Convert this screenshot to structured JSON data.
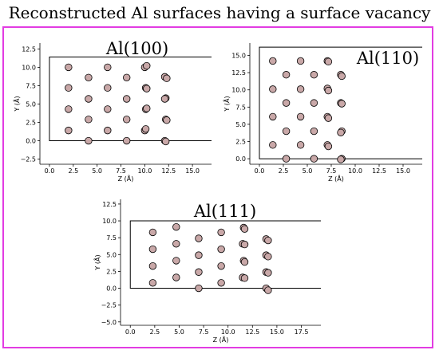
{
  "title": "Reconstructed Al surfaces having a surface vacancy",
  "colors": {
    "frame": "#e23ce2",
    "marker_fill": "#c9a8a8",
    "marker_edge": "#000000",
    "line": "#000000"
  },
  "chart_data": [
    {
      "type": "scatter",
      "title": "Al(100)",
      "xlabel": "Z (Å)",
      "ylabel": "Y (Å)",
      "xlim": [
        -1.0,
        17.0
      ],
      "ylim": [
        -3.2,
        13.3
      ],
      "xticks": [
        0.0,
        2.5,
        5.0,
        7.5,
        10.0,
        12.5,
        15.0
      ],
      "xtick_labels": [
        "0.0",
        "2.5",
        "5.0",
        "7.5",
        "10.0",
        "12.5",
        "15.0"
      ],
      "yticks": [
        -2.5,
        0.0,
        2.5,
        5.0,
        7.5,
        10.0,
        12.5
      ],
      "ytick_labels": [
        "−2.5",
        "0.0",
        "2.5",
        "5.0",
        "7.5",
        "10.0",
        "12.5"
      ],
      "cell_box": {
        "x": [
          0,
          17.0
        ],
        "y": [
          0,
          11.4
        ]
      },
      "points": [
        [
          2.0,
          10.0
        ],
        [
          2.0,
          7.2
        ],
        [
          2.0,
          4.3
        ],
        [
          2.0,
          1.4
        ],
        [
          4.1,
          8.6
        ],
        [
          4.1,
          5.7
        ],
        [
          4.1,
          2.9
        ],
        [
          4.1,
          0.0
        ],
        [
          6.1,
          10.0
        ],
        [
          6.1,
          7.2
        ],
        [
          6.1,
          4.3
        ],
        [
          6.1,
          1.4
        ],
        [
          8.1,
          8.6
        ],
        [
          8.1,
          5.7
        ],
        [
          8.1,
          2.9
        ],
        [
          8.1,
          0.0
        ],
        [
          10.0,
          10.0
        ],
        [
          10.2,
          10.2
        ],
        [
          10.1,
          7.2
        ],
        [
          10.2,
          7.1
        ],
        [
          10.1,
          4.3
        ],
        [
          10.2,
          4.4
        ],
        [
          10.0,
          1.4
        ],
        [
          10.1,
          1.6
        ],
        [
          12.1,
          8.7
        ],
        [
          12.3,
          8.5
        ],
        [
          12.2,
          5.8
        ],
        [
          12.1,
          5.7
        ],
        [
          12.2,
          2.9
        ],
        [
          12.3,
          2.8
        ],
        [
          12.1,
          0.0
        ],
        [
          12.2,
          -0.1
        ]
      ]
    },
    {
      "type": "scatter",
      "title": "Al(110)",
      "xlabel": "Z (Å)",
      "ylabel": "Y (Å)",
      "xlim": [
        -1.0,
        17.0
      ],
      "ylim": [
        -0.8,
        16.8
      ],
      "xticks": [
        0.0,
        2.5,
        5.0,
        7.5,
        10.0,
        12.5,
        15.0
      ],
      "xtick_labels": [
        "0.0",
        "2.5",
        "5.0",
        "7.5",
        "10.0",
        "12.5",
        "15.0"
      ],
      "yticks": [
        0.0,
        2.5,
        5.0,
        7.5,
        10.0,
        12.5,
        15.0
      ],
      "ytick_labels": [
        "0.0",
        "2.5",
        "5.0",
        "7.5",
        "10.0",
        "12.5",
        "15.0"
      ],
      "cell_box": {
        "x": [
          0,
          17.0
        ],
        "y": [
          0,
          16.2
        ]
      },
      "points": [
        [
          1.4,
          14.2
        ],
        [
          1.4,
          10.1
        ],
        [
          1.4,
          6.1
        ],
        [
          1.4,
          2.0
        ],
        [
          2.8,
          12.2
        ],
        [
          2.8,
          8.1
        ],
        [
          2.8,
          4.0
        ],
        [
          2.8,
          0.0
        ],
        [
          4.3,
          14.2
        ],
        [
          4.3,
          10.1
        ],
        [
          4.3,
          6.1
        ],
        [
          4.3,
          2.0
        ],
        [
          5.7,
          12.2
        ],
        [
          5.7,
          8.1
        ],
        [
          5.7,
          4.0
        ],
        [
          5.7,
          0.0
        ],
        [
          7.1,
          14.2
        ],
        [
          7.2,
          14.1
        ],
        [
          7.1,
          10.2
        ],
        [
          7.2,
          9.9
        ],
        [
          7.1,
          6.1
        ],
        [
          7.2,
          5.9
        ],
        [
          7.1,
          2.0
        ],
        [
          7.2,
          1.8
        ],
        [
          8.5,
          12.2
        ],
        [
          8.6,
          12.0
        ],
        [
          8.5,
          8.1
        ],
        [
          8.6,
          8.0
        ],
        [
          8.6,
          4.0
        ],
        [
          8.5,
          3.8
        ],
        [
          8.6,
          0.0
        ],
        [
          8.5,
          -0.1
        ]
      ]
    },
    {
      "type": "scatter",
      "title": "Al(111)",
      "xlabel": "Z (Å)",
      "ylabel": "Y (Å)",
      "xlim": [
        -1.0,
        19.5
      ],
      "ylim": [
        -5.5,
        13.2
      ],
      "xticks": [
        0.0,
        2.5,
        5.0,
        7.5,
        10.0,
        12.5,
        15.0,
        17.5
      ],
      "xtick_labels": [
        "0.0",
        "2.5",
        "5.0",
        "7.5",
        "10.0",
        "12.5",
        "15.0",
        "17.5"
      ],
      "yticks": [
        -5.0,
        -2.5,
        0.0,
        2.5,
        5.0,
        7.5,
        10.0,
        12.5
      ],
      "ytick_labels": [
        "−5.0",
        "−2.5",
        "0.0",
        "2.5",
        "5.0",
        "7.5",
        "10.0",
        "12.5"
      ],
      "cell_box": {
        "x": [
          0,
          19.5
        ],
        "y": [
          0,
          10.0
        ]
      },
      "points": [
        [
          2.3,
          8.3
        ],
        [
          2.3,
          5.8
        ],
        [
          2.3,
          3.3
        ],
        [
          2.3,
          0.8
        ],
        [
          4.7,
          9.1
        ],
        [
          4.7,
          6.6
        ],
        [
          4.7,
          4.1
        ],
        [
          4.7,
          1.6
        ],
        [
          7.0,
          7.4
        ],
        [
          7.0,
          4.9
        ],
        [
          7.0,
          2.4
        ],
        [
          7.0,
          0.0
        ],
        [
          9.3,
          8.3
        ],
        [
          9.3,
          5.8
        ],
        [
          9.3,
          3.3
        ],
        [
          9.3,
          0.8
        ],
        [
          11.6,
          9.0
        ],
        [
          11.7,
          8.8
        ],
        [
          11.5,
          6.6
        ],
        [
          11.7,
          6.5
        ],
        [
          11.6,
          4.1
        ],
        [
          11.7,
          3.9
        ],
        [
          11.5,
          1.6
        ],
        [
          11.7,
          1.5
        ],
        [
          13.9,
          7.3
        ],
        [
          14.1,
          7.1
        ],
        [
          13.9,
          4.9
        ],
        [
          14.1,
          4.7
        ],
        [
          13.9,
          2.4
        ],
        [
          14.1,
          2.3
        ],
        [
          13.9,
          0.0
        ],
        [
          14.1,
          -0.3
        ]
      ]
    }
  ]
}
